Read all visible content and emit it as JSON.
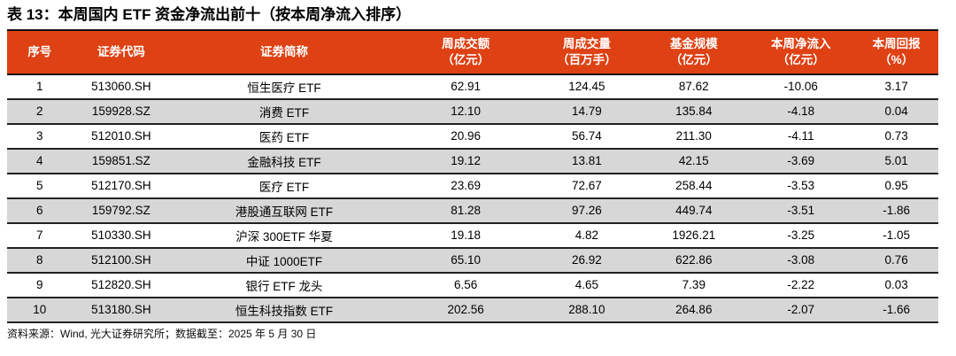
{
  "page": {
    "title": "表 13：本周国内 ETF 资金净流出前十（按本周净流入排序）",
    "source_note": "资料来源：Wind, 光大证券研究所；数据截至：2025 年 5 月 30 日"
  },
  "table": {
    "columns": [
      {
        "label": "序号",
        "sub": ""
      },
      {
        "label": "证券代码",
        "sub": ""
      },
      {
        "label": "证券简称",
        "sub": ""
      },
      {
        "label": "周成交额",
        "sub": "（亿元）"
      },
      {
        "label": "周成交量",
        "sub": "（百万手）"
      },
      {
        "label": "基金规模",
        "sub": "（亿元）"
      },
      {
        "label": "本周净流入",
        "sub": "（亿元）"
      },
      {
        "label": "本周回报",
        "sub": "（%）"
      }
    ],
    "rows": [
      {
        "rank": "1",
        "code": "513060.SH",
        "name": "恒生医疗 ETF",
        "turnover_100m": "62.91",
        "volume_mn_lots": "124.45",
        "fund_size_100m": "87.62",
        "net_inflow_100m": "-10.06",
        "weekly_return_pct": "3.17"
      },
      {
        "rank": "2",
        "code": "159928.SZ",
        "name": "消费 ETF",
        "turnover_100m": "12.10",
        "volume_mn_lots": "14.79",
        "fund_size_100m": "135.84",
        "net_inflow_100m": "-4.18",
        "weekly_return_pct": "0.04"
      },
      {
        "rank": "3",
        "code": "512010.SH",
        "name": "医药 ETF",
        "turnover_100m": "20.96",
        "volume_mn_lots": "56.74",
        "fund_size_100m": "211.30",
        "net_inflow_100m": "-4.11",
        "weekly_return_pct": "0.73"
      },
      {
        "rank": "4",
        "code": "159851.SZ",
        "name": "金融科技 ETF",
        "turnover_100m": "19.12",
        "volume_mn_lots": "13.81",
        "fund_size_100m": "42.15",
        "net_inflow_100m": "-3.69",
        "weekly_return_pct": "5.01"
      },
      {
        "rank": "5",
        "code": "512170.SH",
        "name": "医疗 ETF",
        "turnover_100m": "23.69",
        "volume_mn_lots": "72.67",
        "fund_size_100m": "258.44",
        "net_inflow_100m": "-3.53",
        "weekly_return_pct": "0.95"
      },
      {
        "rank": "6",
        "code": "159792.SZ",
        "name": "港股通互联网 ETF",
        "turnover_100m": "81.28",
        "volume_mn_lots": "97.26",
        "fund_size_100m": "449.74",
        "net_inflow_100m": "-3.51",
        "weekly_return_pct": "-1.86"
      },
      {
        "rank": "7",
        "code": "510330.SH",
        "name": "沪深 300ETF 华夏",
        "turnover_100m": "19.18",
        "volume_mn_lots": "4.82",
        "fund_size_100m": "1926.21",
        "net_inflow_100m": "-3.25",
        "weekly_return_pct": "-1.05"
      },
      {
        "rank": "8",
        "code": "512100.SH",
        "name": "中证 1000ETF",
        "turnover_100m": "65.10",
        "volume_mn_lots": "26.92",
        "fund_size_100m": "622.86",
        "net_inflow_100m": "-3.08",
        "weekly_return_pct": "0.76"
      },
      {
        "rank": "9",
        "code": "512820.SH",
        "name": "银行 ETF 龙头",
        "turnover_100m": "6.56",
        "volume_mn_lots": "4.65",
        "fund_size_100m": "7.39",
        "net_inflow_100m": "-2.22",
        "weekly_return_pct": "0.03"
      },
      {
        "rank": "10",
        "code": "513180.SH",
        "name": "恒生科技指数 ETF",
        "turnover_100m": "202.56",
        "volume_mn_lots": "288.10",
        "fund_size_100m": "264.86",
        "net_inflow_100m": "-2.07",
        "weekly_return_pct": "-1.66"
      }
    ]
  },
  "colors": {
    "header_bg": "#DE4113",
    "header_text": "#FFFFFF",
    "row_alt_bg": "#D7D7D7",
    "border": "#111111"
  }
}
